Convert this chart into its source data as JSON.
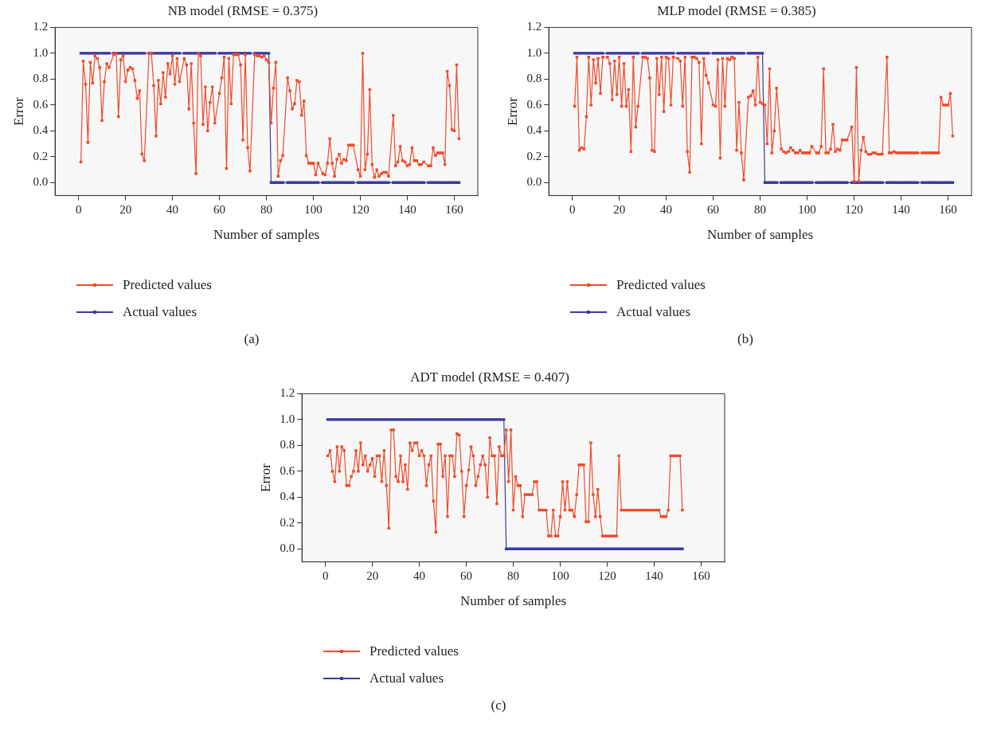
{
  "chart_data": [
    {
      "type": "line",
      "title": "NB model (RMSE = 0.375)",
      "xlabel": "Number of samples",
      "ylabel": "Error",
      "annotations": [
        "(a)"
      ],
      "legend": "bottom",
      "marker": "square",
      "grid": false,
      "xlim": [
        -10,
        170
      ],
      "xticks": [
        0,
        20,
        40,
        60,
        80,
        100,
        120,
        140,
        160
      ],
      "ylim": [
        -0.1,
        1.2
      ],
      "yticks": [
        {
          "value": 0,
          "label": "0.0"
        },
        {
          "value": 0.2,
          "label": "0.2"
        },
        {
          "value": 0.4,
          "label": "0.4"
        },
        {
          "value": 0.6,
          "label": "0.6"
        },
        {
          "value": 0.8,
          "label": "0.8"
        },
        {
          "value": 1,
          "label": "1.0"
        },
        {
          "value": 1.2,
          "label": "1.2"
        }
      ],
      "x": [
        1,
        2,
        3,
        4,
        5,
        6,
        7,
        8,
        9,
        10,
        11,
        12,
        13,
        15,
        16,
        17,
        18,
        19,
        20,
        21,
        22,
        23,
        24,
        25,
        26,
        27,
        28,
        30,
        31,
        32,
        33,
        34,
        35,
        36,
        37,
        38,
        39,
        40,
        41,
        42,
        43,
        45,
        46,
        47,
        48,
        49,
        50,
        51,
        52,
        53,
        54,
        55,
        56,
        57,
        58,
        60,
        61,
        62,
        63,
        64,
        65,
        66,
        67,
        68,
        69,
        70,
        71,
        72,
        73,
        75,
        76,
        77,
        78,
        79,
        80,
        81,
        82,
        83,
        84,
        85,
        86,
        87,
        89,
        90,
        91,
        92,
        93,
        94,
        95,
        96,
        97,
        98,
        99,
        100,
        101,
        102,
        104,
        105,
        106,
        107,
        108,
        109,
        110,
        111,
        112,
        113,
        114,
        115,
        116,
        117,
        119,
        120,
        121,
        122,
        123,
        124,
        125,
        126,
        127,
        128,
        129,
        130,
        131,
        132,
        134,
        135,
        136,
        137,
        138,
        139,
        140,
        141,
        142,
        143,
        144,
        145,
        146,
        147,
        149,
        150,
        151,
        152,
        153,
        154,
        155,
        156,
        157,
        158,
        159,
        160,
        161,
        162
      ],
      "series": [
        {
          "name": "Predicted values",
          "color": "#f04a2a",
          "values": [
            0.16,
            0.94,
            0.76,
            0.31,
            0.93,
            0.77,
            0.98,
            0.96,
            0.89,
            0.48,
            0.78,
            0.92,
            0.89,
            0.99,
            1.0,
            0.51,
            0.95,
            0.98,
            0.78,
            0.87,
            0.89,
            0.88,
            0.79,
            0.65,
            0.71,
            0.22,
            0.17,
            1.0,
            1.0,
            0.75,
            0.36,
            0.79,
            0.61,
            0.85,
            0.66,
            0.92,
            0.84,
            0.98,
            0.76,
            0.96,
            0.78,
            0.96,
            0.91,
            0.57,
            0.92,
            0.46,
            0.07,
            1.0,
            0.98,
            0.45,
            0.74,
            0.4,
            0.62,
            0.74,
            0.46,
            0.69,
            0.81,
            0.97,
            0.11,
            0.96,
            0.61,
            0.99,
            0.99,
            0.99,
            0.91,
            0.33,
            0.99,
            0.27,
            0.09,
            0.99,
            0.98,
            0.98,
            0.97,
            0.98,
            0.95,
            0.93,
            0.46,
            0.73,
            0.93,
            0.05,
            0.17,
            0.21,
            0.81,
            0.71,
            0.57,
            0.61,
            0.79,
            0.78,
            0.52,
            0.63,
            0.21,
            0.15,
            0.15,
            0.15,
            0.06,
            0.15,
            0.07,
            0.06,
            0.15,
            0.34,
            0.15,
            0.05,
            0.18,
            0.22,
            0.15,
            0.18,
            0.17,
            0.29,
            0.29,
            0.29,
            0.1,
            0.05,
            1.0,
            0.1,
            0.22,
            0.72,
            0.14,
            0.04,
            0.1,
            0.05,
            0.07,
            0.08,
            0.08,
            0.05,
            0.52,
            0.13,
            0.16,
            0.28,
            0.17,
            0.16,
            0.13,
            0.14,
            0.27,
            0.17,
            0.17,
            0.14,
            0.14,
            0.16,
            0.13,
            0.13,
            0.27,
            0.21,
            0.23,
            0.23,
            0.23,
            0.14,
            0.86,
            0.75,
            0.41,
            0.4,
            0.91,
            0.34
          ]
        },
        {
          "name": "Actual values",
          "color": "#3b3aa0",
          "values": [
            1,
            1,
            1,
            1,
            1,
            1,
            1,
            1,
            1,
            1,
            1,
            1,
            1,
            1,
            1,
            1,
            1,
            1,
            1,
            1,
            1,
            1,
            1,
            1,
            1,
            1,
            1,
            1,
            1,
            1,
            1,
            1,
            1,
            1,
            1,
            1,
            1,
            1,
            1,
            1,
            1,
            1,
            1,
            1,
            1,
            1,
            1,
            1,
            1,
            1,
            1,
            1,
            1,
            1,
            1,
            1,
            1,
            1,
            1,
            1,
            1,
            1,
            1,
            1,
            1,
            1,
            1,
            1,
            1,
            1,
            1,
            1,
            1,
            1,
            1,
            1,
            0,
            0,
            0,
            0,
            0,
            0,
            0,
            0,
            0,
            0,
            0,
            0,
            0,
            0,
            0,
            0,
            0,
            0,
            0,
            0,
            0,
            0,
            0,
            0,
            0,
            0,
            0,
            0,
            0,
            0,
            0,
            0,
            0,
            0,
            0,
            0,
            0,
            0,
            0,
            0,
            0,
            0,
            0,
            0,
            0,
            0,
            0,
            0,
            0,
            0,
            0,
            0,
            0,
            0,
            0,
            0,
            0,
            0,
            0,
            0,
            0,
            0,
            0,
            0,
            0,
            0,
            0,
            0,
            0,
            0,
            0,
            0,
            0,
            0,
            0,
            0
          ]
        }
      ]
    },
    {
      "type": "line",
      "title": "MLP model (RMSE = 0.385)",
      "xlabel": "Number of samples",
      "ylabel": "Error",
      "annotations": [
        "(b)"
      ],
      "legend": "bottom",
      "marker": "square",
      "grid": false,
      "xlim": [
        -10,
        170
      ],
      "xticks": [
        0,
        20,
        40,
        60,
        80,
        100,
        120,
        140,
        160
      ],
      "ylim": [
        -0.1,
        1.2
      ],
      "yticks": [
        {
          "value": 0,
          "label": "0.0"
        },
        {
          "value": 0.2,
          "label": "0.2"
        },
        {
          "value": 0.4,
          "label": "0.4"
        },
        {
          "value": 0.6,
          "label": "0.6"
        },
        {
          "value": 0.8,
          "label": "0.8"
        },
        {
          "value": 1,
          "label": "1.0"
        },
        {
          "value": 1.2,
          "label": "1.2"
        }
      ],
      "x": [
        1,
        2,
        3,
        4,
        5,
        6,
        7,
        8,
        9,
        10,
        11,
        12,
        13,
        15,
        16,
        17,
        18,
        19,
        20,
        21,
        22,
        23,
        24,
        25,
        26,
        27,
        28,
        30,
        31,
        32,
        33,
        34,
        35,
        36,
        37,
        38,
        39,
        40,
        41,
        42,
        43,
        45,
        46,
        47,
        48,
        49,
        50,
        51,
        52,
        53,
        54,
        55,
        56,
        57,
        58,
        60,
        61,
        62,
        63,
        64,
        65,
        66,
        67,
        68,
        69,
        70,
        71,
        72,
        73,
        75,
        76,
        77,
        78,
        79,
        80,
        81,
        82,
        83,
        84,
        85,
        86,
        87,
        89,
        90,
        91,
        92,
        93,
        94,
        95,
        96,
        97,
        98,
        99,
        100,
        101,
        102,
        104,
        105,
        106,
        107,
        108,
        109,
        110,
        111,
        112,
        113,
        114,
        115,
        116,
        117,
        119,
        120,
        121,
        122,
        123,
        124,
        125,
        126,
        127,
        128,
        129,
        130,
        131,
        132,
        134,
        135,
        136,
        137,
        138,
        139,
        140,
        141,
        142,
        143,
        144,
        145,
        146,
        147,
        149,
        150,
        151,
        152,
        153,
        154,
        155,
        156,
        157,
        158,
        159,
        160,
        161,
        162
      ],
      "series": [
        {
          "name": "Predicted values",
          "color": "#f04a2a",
          "values": [
            0.59,
            0.97,
            0.25,
            0.27,
            0.26,
            0.51,
            0.97,
            0.6,
            0.95,
            0.77,
            0.96,
            0.69,
            0.97,
            0.97,
            0.92,
            0.64,
            0.94,
            0.68,
            0.97,
            0.59,
            0.92,
            0.59,
            0.72,
            0.24,
            0.97,
            0.43,
            0.59,
            0.97,
            0.97,
            0.96,
            0.81,
            0.25,
            0.24,
            0.96,
            0.68,
            0.97,
            0.55,
            0.97,
            0.96,
            0.6,
            0.97,
            0.96,
            0.94,
            0.59,
            0.97,
            0.24,
            0.08,
            0.97,
            0.97,
            0.96,
            0.93,
            0.3,
            0.96,
            0.83,
            0.77,
            0.6,
            0.59,
            0.95,
            0.19,
            0.96,
            0.59,
            0.96,
            0.95,
            0.97,
            0.96,
            0.25,
            0.62,
            0.23,
            0.02,
            0.66,
            0.67,
            0.71,
            0.6,
            0.97,
            0.62,
            0.61,
            0.6,
            0.3,
            0.88,
            0.23,
            0.4,
            0.73,
            0.26,
            0.24,
            0.23,
            0.24,
            0.27,
            0.25,
            0.23,
            0.23,
            0.25,
            0.23,
            0.23,
            0.23,
            0.23,
            0.28,
            0.23,
            0.23,
            0.28,
            0.88,
            0.23,
            0.23,
            0.26,
            0.45,
            0.24,
            0.26,
            0.25,
            0.33,
            0.33,
            0.33,
            0.43,
            0.01,
            0.89,
            0.01,
            0.25,
            0.35,
            0.24,
            0.22,
            0.22,
            0.23,
            0.23,
            0.22,
            0.22,
            0.22,
            0.97,
            0.23,
            0.23,
            0.24,
            0.23,
            0.23,
            0.23,
            0.23,
            0.23,
            0.23,
            0.23,
            0.23,
            0.23,
            0.23,
            0.23,
            0.23,
            0.23,
            0.23,
            0.23,
            0.23,
            0.23,
            0.23,
            0.66,
            0.6,
            0.6,
            0.6,
            0.69,
            0.36
          ]
        },
        {
          "name": "Actual values",
          "color": "#3b3aa0",
          "values": [
            1,
            1,
            1,
            1,
            1,
            1,
            1,
            1,
            1,
            1,
            1,
            1,
            1,
            1,
            1,
            1,
            1,
            1,
            1,
            1,
            1,
            1,
            1,
            1,
            1,
            1,
            1,
            1,
            1,
            1,
            1,
            1,
            1,
            1,
            1,
            1,
            1,
            1,
            1,
            1,
            1,
            1,
            1,
            1,
            1,
            1,
            1,
            1,
            1,
            1,
            1,
            1,
            1,
            1,
            1,
            1,
            1,
            1,
            1,
            1,
            1,
            1,
            1,
            1,
            1,
            1,
            1,
            1,
            1,
            1,
            1,
            1,
            1,
            1,
            1,
            1,
            0,
            0,
            0,
            0,
            0,
            0,
            0,
            0,
            0,
            0,
            0,
            0,
            0,
            0,
            0,
            0,
            0,
            0,
            0,
            0,
            0,
            0,
            0,
            0,
            0,
            0,
            0,
            0,
            0,
            0,
            0,
            0,
            0,
            0,
            0,
            0,
            0,
            0,
            0,
            0,
            0,
            0,
            0,
            0,
            0,
            0,
            0,
            0,
            0,
            0,
            0,
            0,
            0,
            0,
            0,
            0,
            0,
            0,
            0,
            0,
            0,
            0,
            0,
            0,
            0,
            0,
            0,
            0,
            0,
            0,
            0,
            0,
            0,
            0,
            0,
            0
          ]
        }
      ]
    },
    {
      "type": "line",
      "title": "ADT model (RMSE = 0.407)",
      "xlabel": "Number of samples",
      "ylabel": "Error",
      "annotations": [
        "(c)"
      ],
      "legend": "bottom",
      "marker": "square",
      "grid": false,
      "xlim": [
        -10,
        170
      ],
      "xticks": [
        0,
        20,
        40,
        60,
        80,
        100,
        120,
        140,
        160
      ],
      "ylim": [
        -0.1,
        1.2
      ],
      "yticks": [
        {
          "value": 0,
          "label": "0.0"
        },
        {
          "value": 0.2,
          "label": "0.2"
        },
        {
          "value": 0.4,
          "label": "0.4"
        },
        {
          "value": 0.6,
          "label": "0.6"
        },
        {
          "value": 0.8,
          "label": "0.8"
        },
        {
          "value": 1,
          "label": "1.0"
        },
        {
          "value": 1.2,
          "label": "1.2"
        }
      ],
      "x": [
        1,
        2,
        3,
        4,
        5,
        6,
        7,
        8,
        9,
        10,
        11,
        12,
        13,
        14,
        15,
        16,
        17,
        18,
        19,
        20,
        21,
        22,
        23,
        24,
        25,
        26,
        27,
        28,
        29,
        30,
        31,
        32,
        33,
        34,
        35,
        36,
        37,
        38,
        39,
        40,
        41,
        42,
        43,
        44,
        45,
        46,
        47,
        48,
        49,
        50,
        51,
        52,
        53,
        54,
        55,
        56,
        57,
        58,
        59,
        60,
        61,
        62,
        63,
        64,
        65,
        66,
        67,
        68,
        69,
        70,
        71,
        72,
        73,
        74,
        75,
        76,
        77,
        78,
        79,
        80,
        81,
        82,
        83,
        84,
        85,
        86,
        87,
        88,
        89,
        90,
        91,
        92,
        93,
        94,
        95,
        96,
        97,
        98,
        99,
        100,
        101,
        102,
        103,
        104,
        105,
        106,
        107,
        108,
        109,
        110,
        111,
        112,
        113,
        114,
        115,
        116,
        117,
        118,
        119,
        120,
        121,
        122,
        123,
        124,
        125,
        126,
        127,
        128,
        129,
        130,
        131,
        132,
        133,
        134,
        135,
        136,
        137,
        138,
        139,
        140,
        141,
        142,
        143,
        144,
        145,
        146,
        147,
        148,
        149,
        150,
        151,
        152
      ],
      "series": [
        {
          "name": "Predicted values",
          "color": "#f04a2a",
          "values": [
            0.72,
            0.76,
            0.6,
            0.52,
            0.79,
            0.6,
            0.79,
            0.76,
            0.49,
            0.49,
            0.56,
            0.6,
            0.76,
            0.6,
            0.82,
            0.65,
            0.72,
            0.6,
            0.65,
            0.7,
            0.56,
            0.72,
            0.72,
            0.52,
            0.76,
            0.49,
            0.16,
            0.92,
            0.92,
            0.56,
            0.52,
            0.72,
            0.52,
            0.65,
            0.46,
            0.82,
            0.76,
            0.82,
            0.82,
            0.72,
            0.76,
            0.72,
            0.49,
            0.65,
            0.72,
            0.37,
            0.13,
            0.81,
            0.81,
            0.56,
            0.72,
            0.25,
            0.72,
            0.72,
            0.56,
            0.89,
            0.88,
            0.6,
            0.25,
            0.49,
            0.61,
            0.79,
            0.72,
            0.49,
            0.56,
            0.65,
            0.72,
            0.65,
            0.4,
            0.86,
            0.72,
            0.72,
            0.35,
            0.79,
            0.72,
            0.72,
            0.92,
            0.52,
            0.92,
            0.3,
            0.56,
            0.49,
            0.49,
            0.25,
            0.42,
            0.42,
            0.42,
            0.42,
            0.52,
            0.52,
            0.3,
            0.3,
            0.3,
            0.3,
            0.1,
            0.1,
            0.3,
            0.1,
            0.1,
            0.25,
            0.52,
            0.3,
            0.52,
            0.3,
            0.3,
            0.25,
            0.42,
            0.65,
            0.65,
            0.65,
            0.21,
            0.21,
            0.82,
            0.42,
            0.25,
            0.46,
            0.25,
            0.1,
            0.1,
            0.1,
            0.1,
            0.1,
            0.1,
            0.1,
            0.72,
            0.3,
            0.3,
            0.3,
            0.3,
            0.3,
            0.3,
            0.3,
            0.3,
            0.3,
            0.3,
            0.3,
            0.3,
            0.3,
            0.3,
            0.3,
            0.3,
            0.3,
            0.25,
            0.25,
            0.25,
            0.3,
            0.72,
            0.72,
            0.72,
            0.72,
            0.72,
            0.3
          ]
        },
        {
          "name": "Actual values",
          "color": "#3b3aa0",
          "values": [
            1,
            1,
            1,
            1,
            1,
            1,
            1,
            1,
            1,
            1,
            1,
            1,
            1,
            1,
            1,
            1,
            1,
            1,
            1,
            1,
            1,
            1,
            1,
            1,
            1,
            1,
            1,
            1,
            1,
            1,
            1,
            1,
            1,
            1,
            1,
            1,
            1,
            1,
            1,
            1,
            1,
            1,
            1,
            1,
            1,
            1,
            1,
            1,
            1,
            1,
            1,
            1,
            1,
            1,
            1,
            1,
            1,
            1,
            1,
            1,
            1,
            1,
            1,
            1,
            1,
            1,
            1,
            1,
            1,
            1,
            1,
            1,
            1,
            1,
            1,
            1,
            0,
            0,
            0,
            0,
            0,
            0,
            0,
            0,
            0,
            0,
            0,
            0,
            0,
            0,
            0,
            0,
            0,
            0,
            0,
            0,
            0,
            0,
            0,
            0,
            0,
            0,
            0,
            0,
            0,
            0,
            0,
            0,
            0,
            0,
            0,
            0,
            0,
            0,
            0,
            0,
            0,
            0,
            0,
            0,
            0,
            0,
            0,
            0,
            0,
            0,
            0,
            0,
            0,
            0,
            0,
            0,
            0,
            0,
            0,
            0,
            0,
            0,
            0,
            0,
            0,
            0,
            0,
            0,
            0,
            0,
            0,
            0,
            0,
            0,
            0,
            0
          ]
        }
      ]
    }
  ]
}
